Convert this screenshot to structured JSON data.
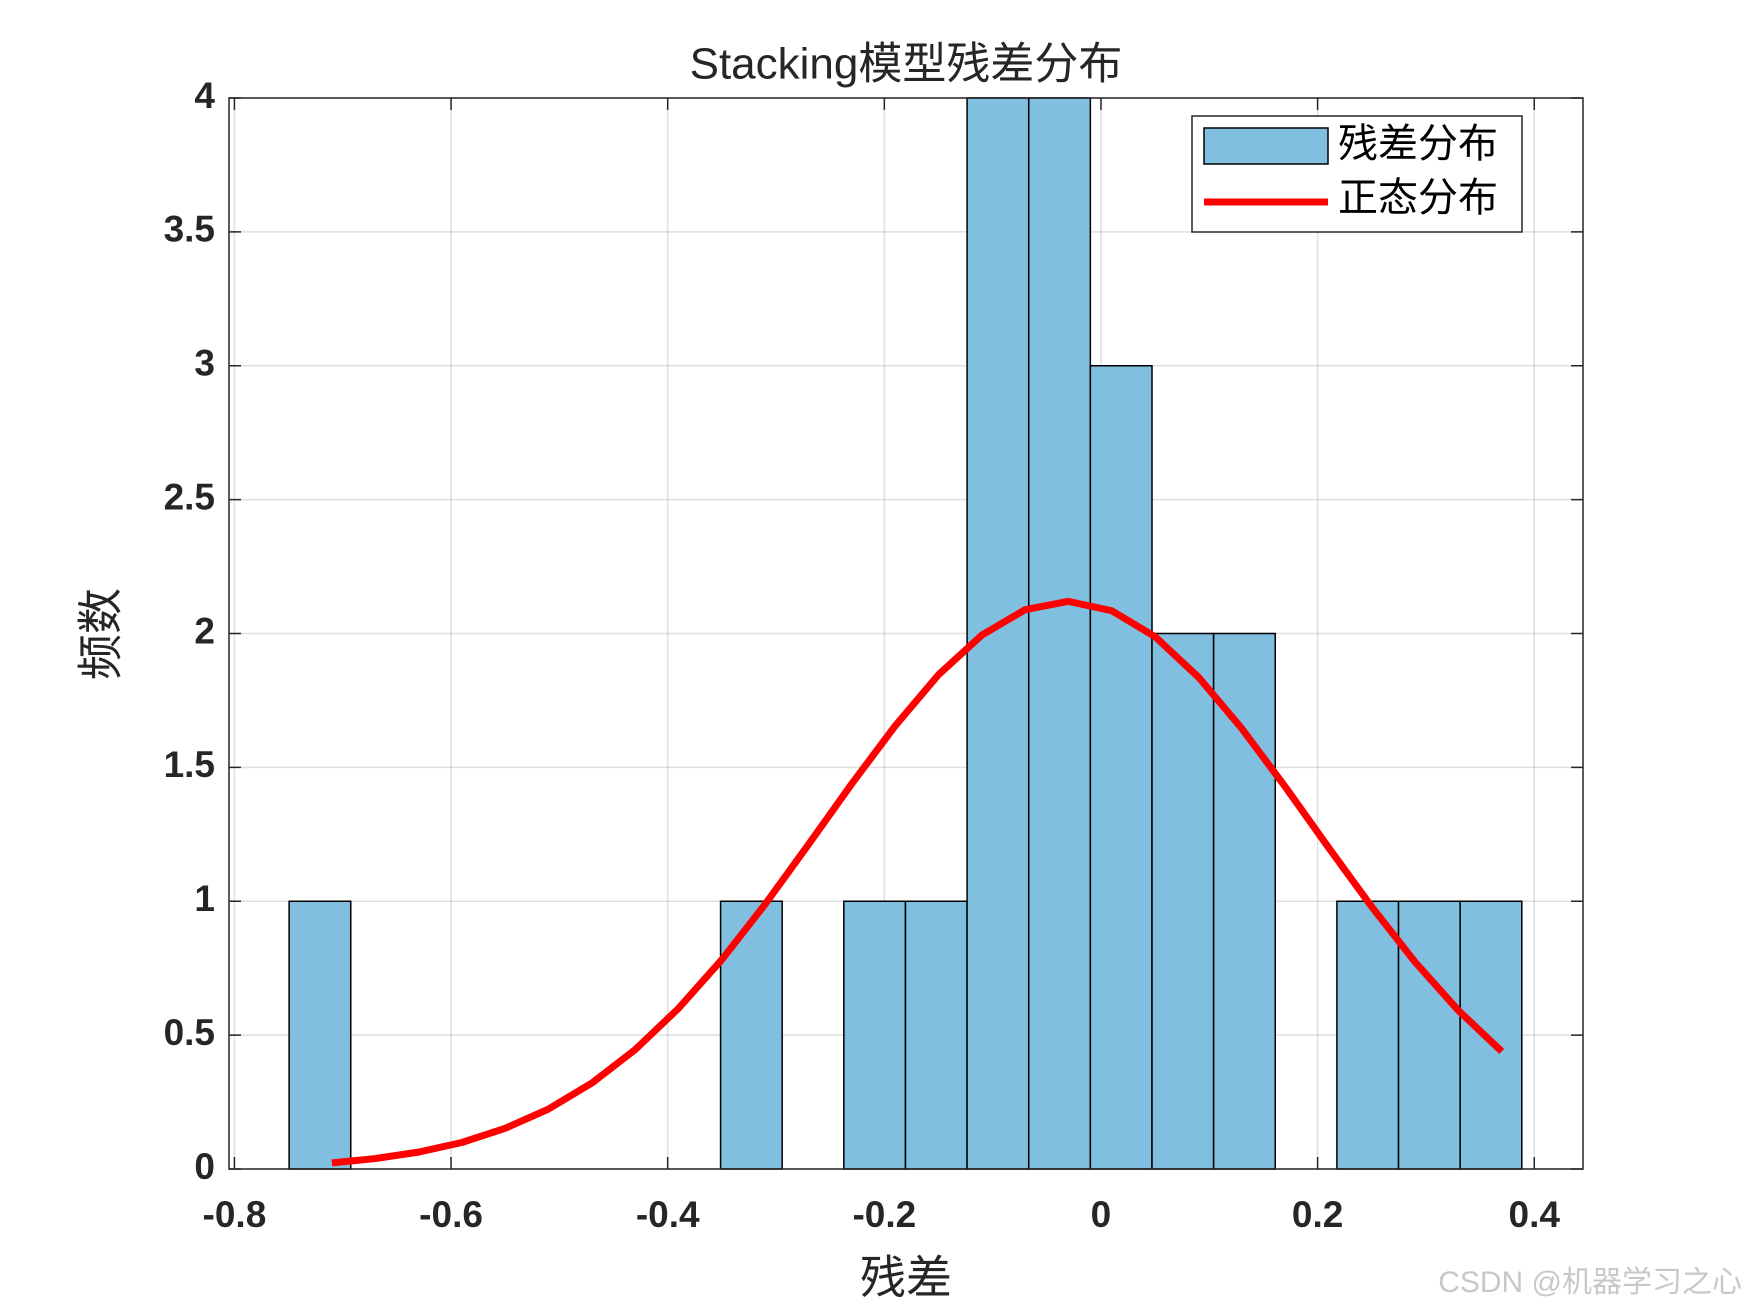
{
  "chart_data": {
    "type": "histogram",
    "title": "Stacking模型残差分布",
    "xlabel": "残差",
    "ylabel": "频数",
    "name": "残差分布",
    "color": "#80bfdf",
    "bins": [
      -0.7495,
      -0.6926,
      -0.6357,
      -0.5788,
      -0.5219,
      -0.465,
      -0.4081,
      -0.3512,
      -0.2943,
      -0.2374,
      -0.1805,
      -0.1236,
      -0.0667,
      -0.0098,
      0.0471,
      0.104,
      0.1609,
      0.2178,
      0.2747,
      0.3316,
      0.3885
    ],
    "counts": [
      1,
      0,
      0,
      0,
      0,
      0,
      0,
      1,
      0,
      1,
      1,
      4,
      4,
      3,
      2,
      2,
      0,
      1,
      1,
      1
    ],
    "curve": {
      "name": "正态分布",
      "color": "#ff0000",
      "x": [
        -0.71,
        -0.67,
        -0.63,
        -0.59,
        -0.55,
        -0.51,
        -0.47,
        -0.43,
        -0.39,
        -0.35,
        -0.31,
        -0.27,
        -0.23,
        -0.19,
        -0.15,
        -0.11,
        -0.07,
        -0.03,
        0.01,
        0.05,
        0.09,
        0.13,
        0.17,
        0.21,
        0.25,
        0.29,
        0.33,
        0.37
      ],
      "y": [
        0.023,
        0.039,
        0.063,
        0.099,
        0.152,
        0.224,
        0.321,
        0.446,
        0.6,
        0.782,
        0.989,
        1.212,
        1.439,
        1.655,
        1.846,
        1.994,
        2.089,
        2.12,
        2.085,
        1.988,
        1.837,
        1.645,
        1.428,
        1.201,
        0.979,
        0.773,
        0.592,
        0.439
      ]
    },
    "xlim": [
      -0.805,
      0.445
    ],
    "ylim": [
      0,
      4
    ],
    "xticks": [
      -0.8,
      -0.6,
      -0.4,
      -0.2,
      0,
      0.2,
      0.4
    ],
    "yticks": [
      0,
      0.5,
      1,
      1.5,
      2,
      2.5,
      3,
      3.5,
      4
    ],
    "grid": true,
    "legend": "upper right",
    "watermark": "CSDN @机器学习之心"
  }
}
